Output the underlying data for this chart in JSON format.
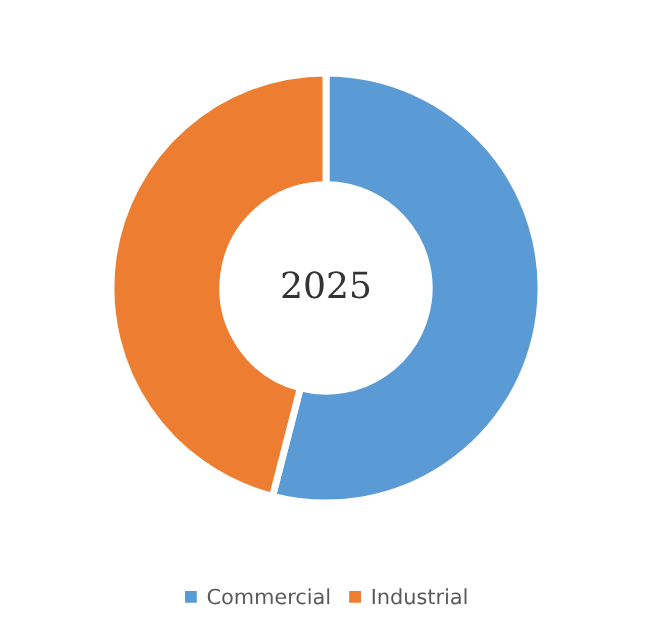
{
  "chart_data": {
    "type": "donut",
    "categories": [
      "Commercial",
      "Industrial"
    ],
    "values": [
      54,
      46
    ],
    "colors": [
      "#5b9bd5",
      "#ed7d31"
    ],
    "annotations": [
      "2025"
    ],
    "legend": "bottom"
  }
}
